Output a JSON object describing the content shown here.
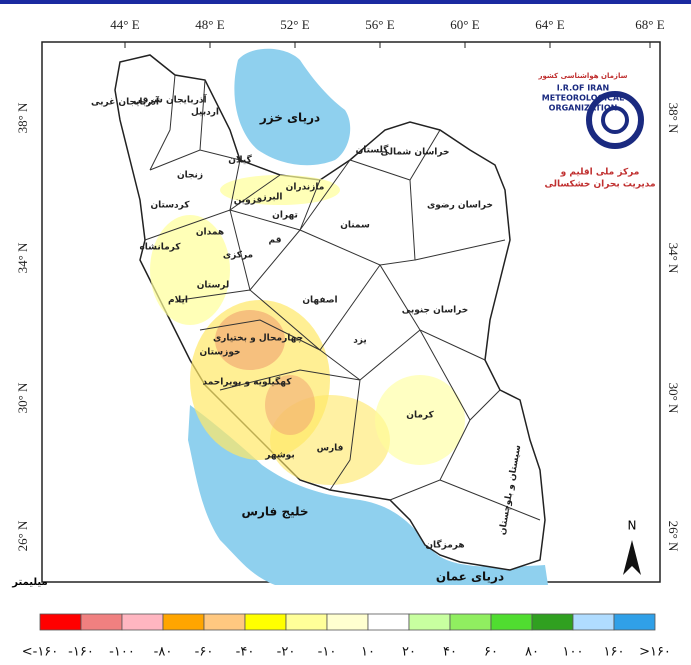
{
  "map": {
    "lon_labels": [
      "44° E",
      "48° E",
      "52° E",
      "56° E",
      "60° E",
      "64° E",
      "68° E"
    ],
    "lat_labels": [
      "38° N",
      "34° N",
      "30° N",
      "26° N"
    ],
    "regions": [
      {
        "label": "آذربایجان غربی"
      },
      {
        "label": "آذربایجان شرقی"
      },
      {
        "label": "اردبیل"
      },
      {
        "label": "زنجان"
      },
      {
        "label": "گیلان"
      },
      {
        "label": "مازندران"
      },
      {
        "label": "گلستان"
      },
      {
        "label": "خراسان شمالی"
      },
      {
        "label": "خراسان رضوی"
      },
      {
        "label": "سمنان"
      },
      {
        "label": "تهران"
      },
      {
        "label": "البرز"
      },
      {
        "label": "قزوین"
      },
      {
        "label": "کردستان"
      },
      {
        "label": "همدان"
      },
      {
        "label": "کرمانشاه"
      },
      {
        "label": "مرکزی"
      },
      {
        "label": "قم"
      },
      {
        "label": "لرستان"
      },
      {
        "label": "ایلام"
      },
      {
        "label": "اصفهان"
      },
      {
        "label": "خراسان جنوبی"
      },
      {
        "label": "یزد"
      },
      {
        "label": "خوزستان"
      },
      {
        "label": "چهارمحال و بختیاری"
      },
      {
        "label": "کهگیلویه و بویراحمد"
      },
      {
        "label": "بوشهر"
      },
      {
        "label": "فارس"
      },
      {
        "label": "کرمان"
      },
      {
        "label": "سیستان و بلوچستان"
      },
      {
        "label": "هرمزگان"
      }
    ],
    "seas": [
      "دریای خزر",
      "خلیج فارس",
      "دریای عمان"
    ],
    "logo": [
      "سازمان هواشناسی کشور",
      "I.R.OF IRAN",
      "METEOROLOGICAL",
      "ORGANIZATION",
      "مرکز ملی اقلیم و",
      "مدیریت بحران خشکسالی"
    ],
    "north": "N",
    "unit": "میلیمتر",
    "legend": {
      "colors": [
        "#ff0000",
        "#f08080",
        "#ffb6c1",
        "#ffa500",
        "#ffc880",
        "#ffff00",
        "#ffff99",
        "#ffffd0",
        "#ffffff",
        "#c8ffa0",
        "#90ee60",
        "#50dd30",
        "#30a020",
        "#b0dcff",
        "#30a0e8",
        "#2080a0"
      ],
      "labels": [
        "<-۱۶۰",
        "-۱۶۰",
        "-۱۰۰",
        "-۸۰",
        "-۶۰",
        "-۴۰",
        "-۲۰",
        "-۱۰",
        "۱۰",
        "۲۰",
        "۴۰",
        "۶۰",
        "۸۰",
        "۱۰۰",
        "۱۶۰",
        ">۱۶۰"
      ]
    }
  }
}
